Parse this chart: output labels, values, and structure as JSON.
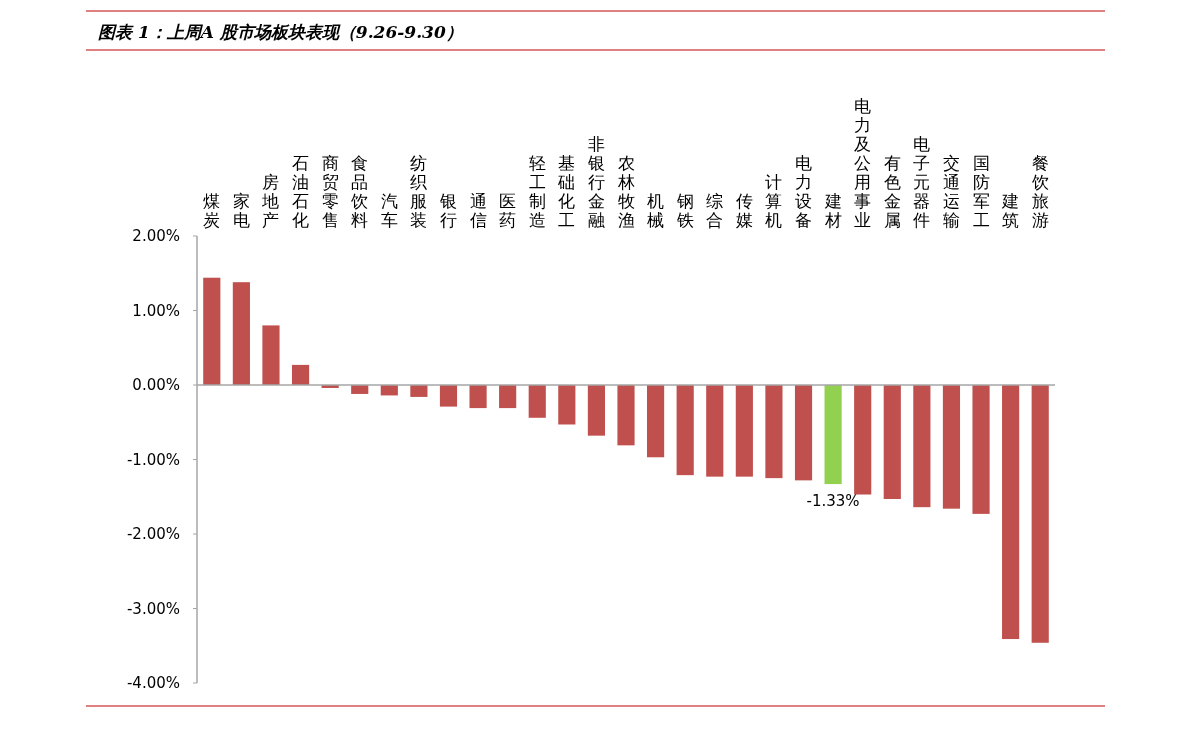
{
  "chart_data": {
    "type": "bar",
    "title": "图表 1：上周A 股市场板块表现（9.26-9.30）",
    "categories": [
      "煤炭",
      "家电",
      "房地产",
      "石油石化",
      "商贸零售",
      "食品饮料",
      "汽车",
      "纺织服装",
      "银行",
      "通信",
      "医药",
      "轻工制造",
      "基础化工",
      "非银行金融",
      "农林牧渔",
      "机械",
      "钢铁",
      "综合",
      "传媒",
      "计算机",
      "电力设备",
      "建材",
      "电力及公用事业",
      "有色金属",
      "电子元器件",
      "交通运输",
      "国防军工",
      "建筑",
      "餐饮旅游"
    ],
    "values": [
      1.44,
      1.38,
      0.8,
      0.27,
      -0.04,
      -0.12,
      -0.14,
      -0.16,
      -0.29,
      -0.31,
      -0.31,
      -0.44,
      -0.53,
      -0.68,
      -0.81,
      -0.97,
      -1.21,
      -1.23,
      -1.23,
      -1.25,
      -1.28,
      -1.33,
      -1.47,
      -1.53,
      -1.64,
      -1.66,
      -1.73,
      -3.41,
      -3.46
    ],
    "colors": [
      "#c0504d",
      "#c0504d",
      "#c0504d",
      "#c0504d",
      "#c0504d",
      "#c0504d",
      "#c0504d",
      "#c0504d",
      "#c0504d",
      "#c0504d",
      "#c0504d",
      "#c0504d",
      "#c0504d",
      "#c0504d",
      "#c0504d",
      "#c0504d",
      "#c0504d",
      "#c0504d",
      "#c0504d",
      "#c0504d",
      "#c0504d",
      "#92d050",
      "#c0504d",
      "#c0504d",
      "#c0504d",
      "#c0504d",
      "#c0504d",
      "#c0504d",
      "#c0504d"
    ],
    "value_labels": [
      null,
      null,
      null,
      null,
      null,
      null,
      null,
      null,
      null,
      null,
      null,
      null,
      null,
      null,
      null,
      null,
      null,
      null,
      null,
      null,
      null,
      "-1.33%",
      null,
      null,
      null,
      null,
      null,
      null,
      null
    ],
    "ylim": [
      -4,
      2
    ],
    "yticks": [
      {
        "value": 2,
        "label": "2.00%"
      },
      {
        "value": 1,
        "label": "1.00%"
      },
      {
        "value": 0,
        "label": "0.00%"
      },
      {
        "value": -1,
        "label": "-1.00%"
      },
      {
        "value": -2,
        "label": "-2.00%"
      },
      {
        "value": -3,
        "label": "-3.00%"
      },
      {
        "value": -4,
        "label": "-4.00%"
      }
    ]
  }
}
